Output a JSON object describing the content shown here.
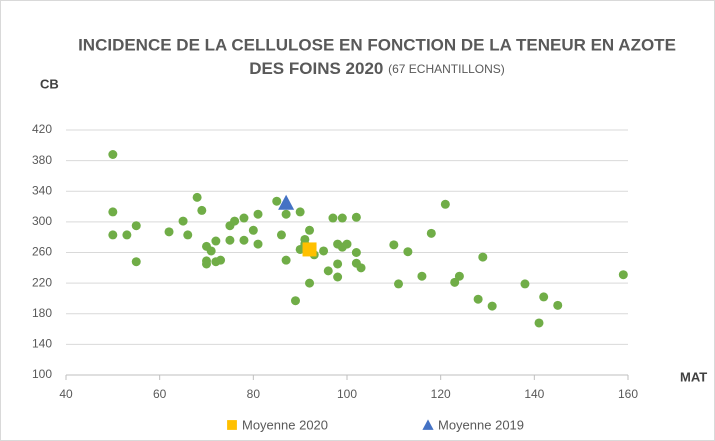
{
  "chart_data": {
    "type": "scatter",
    "title": [
      "INCIDENCE DE LA CELLULOSE EN FONCTION DE LA TENEUR EN AZOTE",
      "DES FOINS 2020"
    ],
    "subtitle": "(67 ECHANTILLONS)",
    "x_label": "MAT",
    "y_label": "CB",
    "xlim": [
      40,
      160
    ],
    "xticks": [
      40,
      60,
      80,
      100,
      120,
      140,
      160
    ],
    "ylim": [
      100,
      420
    ],
    "yticks": [
      100,
      140,
      180,
      220,
      260,
      300,
      340,
      380,
      420
    ],
    "grid": true,
    "legend": "bottom",
    "series": [
      {
        "color": "#70ad47",
        "marker": "circle",
        "x": [
          50,
          50,
          50,
          53,
          55,
          55,
          62,
          65,
          66,
          68,
          69,
          70,
          70,
          70,
          72,
          72,
          73,
          75,
          76,
          75,
          78,
          78,
          80,
          81,
          81,
          85,
          86,
          87,
          87,
          89,
          90,
          90,
          91,
          91,
          92,
          92,
          93,
          96,
          97,
          98,
          98,
          98,
          99,
          99,
          100,
          102,
          102,
          102,
          103,
          110,
          111,
          113,
          116,
          118,
          121,
          123,
          124,
          128,
          129,
          131,
          138,
          141,
          142,
          145,
          159,
          71,
          95
        ],
        "values": [
          388,
          313,
          283,
          283,
          295,
          248,
          287,
          301,
          283,
          332,
          315,
          268,
          249,
          245,
          275,
          248,
          250,
          295,
          301,
          276,
          305,
          276,
          289,
          310,
          271,
          327,
          283,
          310,
          250,
          197,
          313,
          264,
          277,
          271,
          289,
          220,
          257,
          236,
          305,
          271,
          245,
          228,
          305,
          267,
          271,
          306,
          260,
          246,
          240,
          270,
          219,
          261,
          229,
          285,
          323,
          221,
          229,
          199,
          254,
          190,
          219,
          168,
          202,
          191,
          231,
          262,
          262
        ]
      },
      {
        "name": "Moyenne 2020",
        "color": "#ffc000",
        "marker": "square",
        "x": [
          92
        ],
        "values": [
          264
        ]
      },
      {
        "name": "Moyenne 2019",
        "color": "#4472c4",
        "marker": "triangle",
        "x": [
          87
        ],
        "values": [
          325
        ]
      }
    ]
  }
}
